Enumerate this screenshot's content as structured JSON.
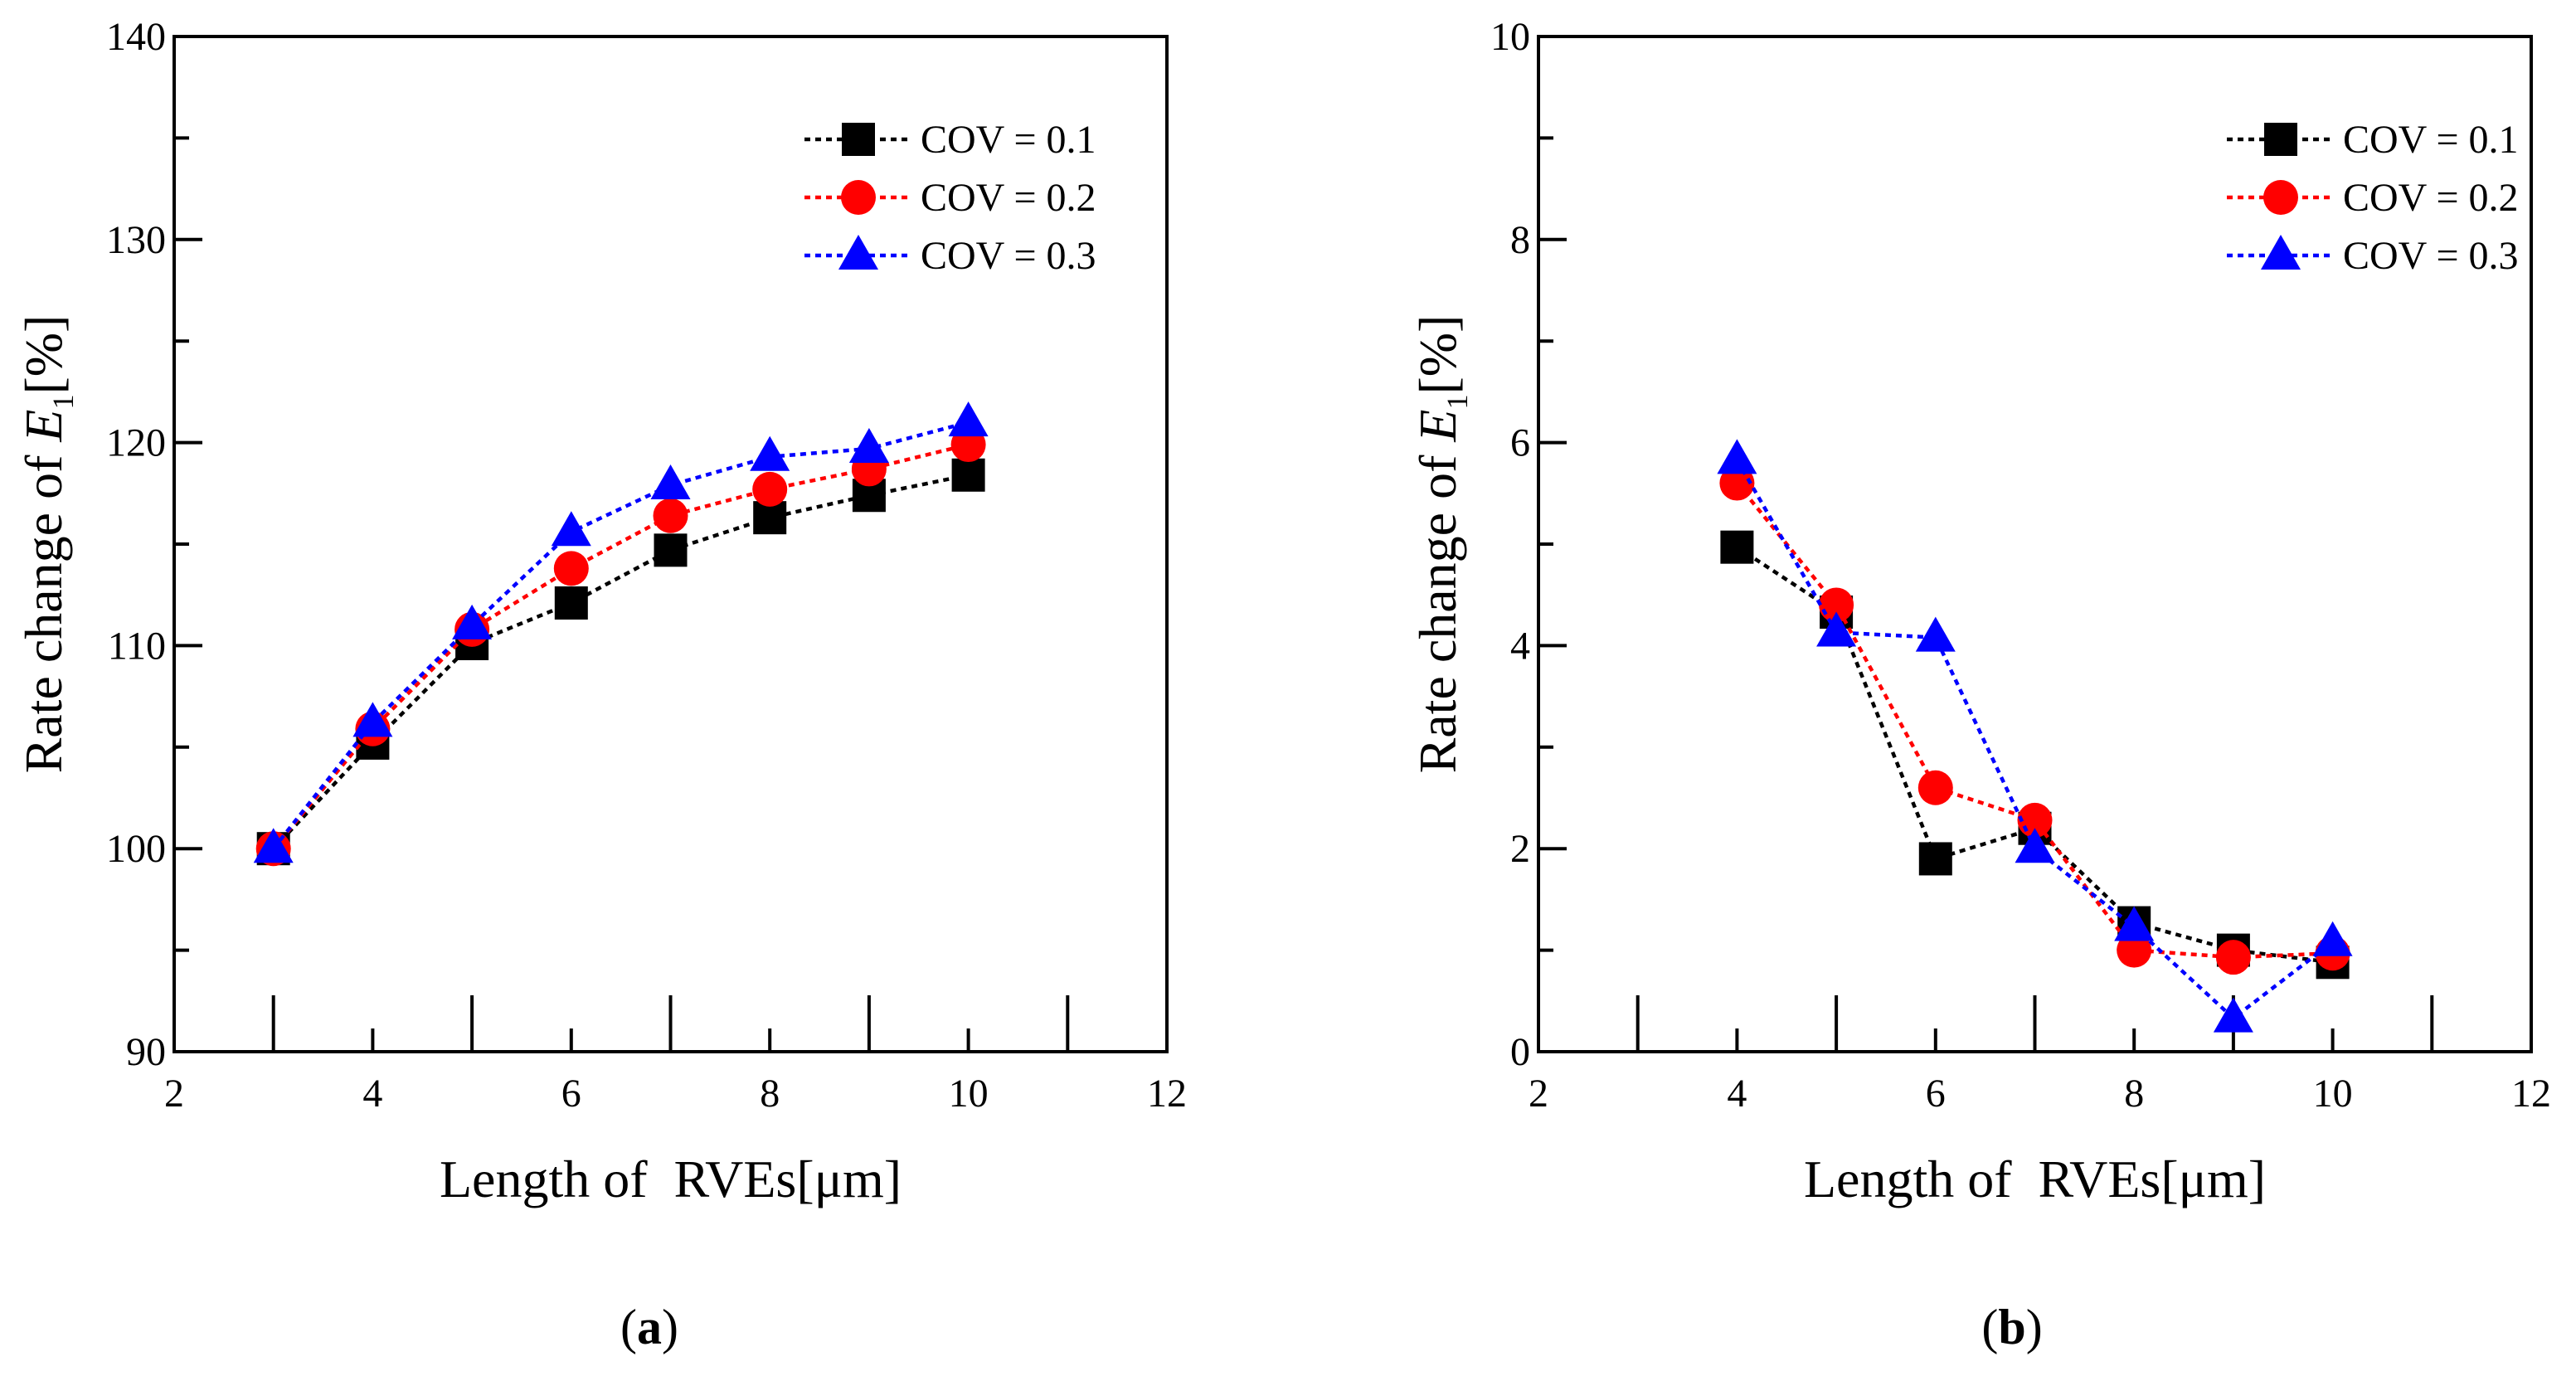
{
  "chart_data": [
    {
      "panel": "a",
      "type": "line",
      "panel_label": "a",
      "xlabel": "Length of  RVEs[μm]",
      "ylabel_prefix": "Rate change of ",
      "ylabel_var": "E",
      "ylabel_sub": "1",
      "ylabel_suffix": "[%]",
      "xlim": [
        2,
        12
      ],
      "ylim": [
        90,
        140
      ],
      "xticks": [
        2,
        4,
        6,
        8,
        10,
        12
      ],
      "yticks": [
        90,
        100,
        110,
        120,
        130,
        140
      ],
      "legend_position": "top-right",
      "series": [
        {
          "name": "COV = 0.1",
          "color": "#000000",
          "marker": "square",
          "x": [
            3,
            4,
            5,
            6,
            7,
            8,
            9,
            10
          ],
          "y": [
            100,
            105.2,
            110.1,
            112.1,
            114.7,
            116.3,
            117.4,
            118.4
          ]
        },
        {
          "name": "COV = 0.2",
          "color": "#ff0000",
          "marker": "circle",
          "x": [
            3,
            4,
            5,
            6,
            7,
            8,
            9,
            10
          ],
          "y": [
            100,
            105.9,
            110.8,
            113.8,
            116.4,
            117.7,
            118.7,
            119.9
          ]
        },
        {
          "name": "COV = 0.3",
          "color": "#0000ff",
          "marker": "triangle",
          "x": [
            3,
            4,
            5,
            6,
            7,
            8,
            9,
            10
          ],
          "y": [
            100,
            106.2,
            111.0,
            115.6,
            117.9,
            119.3,
            119.7,
            121.0
          ]
        }
      ]
    },
    {
      "panel": "b",
      "type": "line",
      "panel_label": "b",
      "xlabel": "Length of  RVEs[μm]",
      "ylabel_prefix": "Rate change of ",
      "ylabel_var": "E",
      "ylabel_sub": "1",
      "ylabel_suffix": "[%]",
      "xlim": [
        2,
        12
      ],
      "ylim": [
        0,
        10
      ],
      "xticks": [
        2,
        4,
        6,
        8,
        10,
        12
      ],
      "yticks": [
        0,
        2,
        4,
        6,
        8,
        10
      ],
      "legend_position": "top-right",
      "series": [
        {
          "name": "COV = 0.1",
          "color": "#000000",
          "marker": "square",
          "x": [
            4,
            5,
            6,
            7,
            8,
            9,
            10
          ],
          "y": [
            4.97,
            4.33,
            1.9,
            2.2,
            1.27,
            1.0,
            0.88
          ]
        },
        {
          "name": "COV = 0.2",
          "color": "#ff0000",
          "marker": "circle",
          "x": [
            4,
            5,
            6,
            7,
            8,
            9,
            10
          ],
          "y": [
            5.6,
            4.4,
            2.6,
            2.28,
            1.0,
            0.93,
            0.97
          ]
        },
        {
          "name": "COV = 0.3",
          "color": "#0000ff",
          "marker": "triangle",
          "x": [
            4,
            5,
            6,
            7,
            8,
            9,
            10
          ],
          "y": [
            5.83,
            4.13,
            4.08,
            2.0,
            1.23,
            0.33,
            1.08
          ]
        }
      ]
    }
  ]
}
